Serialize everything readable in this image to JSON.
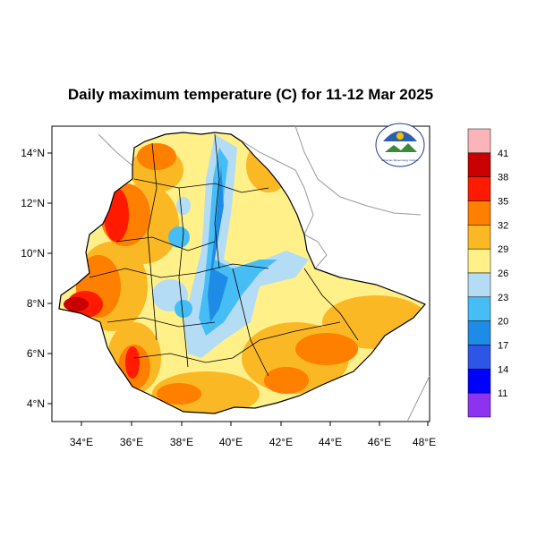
{
  "title": "Daily maximum temperature (C) for 11-12 Mar 2025",
  "map": {
    "region": "Ethiopia",
    "lon_range": [
      33,
      48
    ],
    "lat_range": [
      3.2,
      15
    ],
    "x_ticks": [
      "34°E",
      "36°E",
      "38°E",
      "40°E",
      "42°E",
      "44°E",
      "46°E",
      "48°E"
    ],
    "y_ticks": [
      "14°N",
      "12°N",
      "10°N",
      "8°N",
      "6°N",
      "4°N"
    ]
  },
  "logo": {
    "text": "Ethiopian Meteorology Institute"
  },
  "colorbar": {
    "labels": [
      "41",
      "38",
      "35",
      "32",
      "29",
      "26",
      "23",
      "20",
      "17",
      "14",
      "11"
    ],
    "colors": [
      "#fbb5b9",
      "#c80000",
      "#ff1a00",
      "#ff7f00",
      "#fbb825",
      "#fff08a",
      "#b4dcf5",
      "#46bef5",
      "#1e8ce6",
      "#2d55e6",
      "#0000ff",
      "#8c32f0"
    ]
  }
}
